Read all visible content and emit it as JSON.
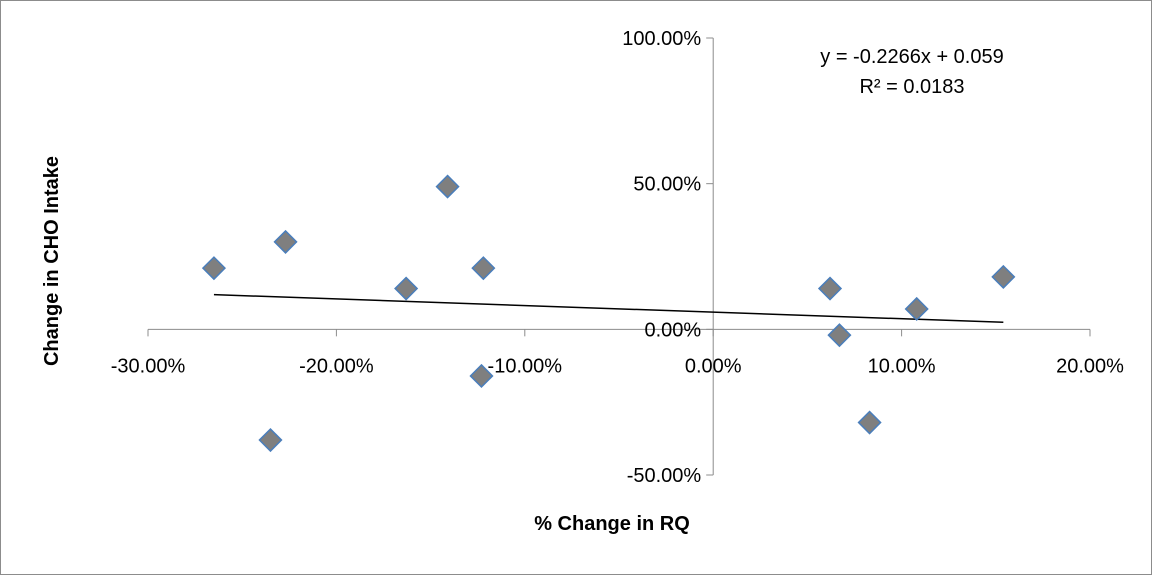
{
  "chart_data": {
    "type": "scatter",
    "title": "",
    "xlabel": "% Change in RQ",
    "ylabel": "Change in CHO Intake",
    "xlim": [
      -0.3,
      0.2
    ],
    "ylim": [
      -0.5,
      1.0
    ],
    "x_ticks": [
      -0.3,
      -0.2,
      -0.1,
      0.0,
      0.1,
      0.2
    ],
    "x_tick_labels": [
      "-30.00%",
      "-20.00%",
      "-10.00%",
      "0.00%",
      "10.00%",
      "20.00%"
    ],
    "y_ticks": [
      -0.5,
      0.0,
      0.5,
      1.0
    ],
    "y_tick_labels": [
      "-50.00%",
      "0.00%",
      "50.00%",
      "100.00%"
    ],
    "grid": false,
    "legend": "none",
    "marker": "diamond",
    "colors": {
      "marker_fill": "#7f7f7f",
      "marker_edge": "#4a7ebb",
      "axis": "#8c8c8c",
      "trendline": "#000000"
    },
    "series": [
      {
        "x": [
          -0.265,
          -0.235,
          -0.227,
          -0.163,
          -0.141,
          -0.122,
          -0.123,
          0.062,
          0.067,
          0.083,
          0.108,
          0.154
        ],
        "y": [
          0.21,
          -0.38,
          0.3,
          0.14,
          0.49,
          0.21,
          -0.16,
          0.14,
          -0.02,
          -0.32,
          0.07,
          0.18
        ]
      }
    ],
    "trendline": {
      "type": "linear",
      "slope": -0.2266,
      "intercept": 0.059,
      "x_range": [
        -0.265,
        0.154
      ],
      "equation_label": "y = -0.2266x + 0.059",
      "r2_label": "R² = 0.0183"
    }
  }
}
